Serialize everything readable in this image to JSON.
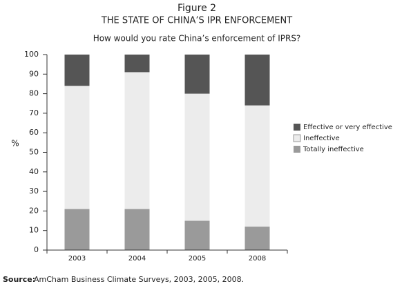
{
  "chart_data": {
    "type": "stacked_bar",
    "figure_label": "Figure 2",
    "title": "THE STATE OF CHINA’S IPR ENFORCEMENT",
    "subtitle": "How would you rate China’s enforcement of IPRS?",
    "y_label": "%",
    "categories": [
      "2003",
      "2004",
      "2005",
      "2008"
    ],
    "series": [
      {
        "name": "Totally ineffective",
        "color": "#9a9a9a",
        "values": [
          21,
          21,
          15,
          12
        ]
      },
      {
        "name": "Ineffective",
        "color": "#ececec",
        "values": [
          63,
          70,
          65,
          62
        ]
      },
      {
        "name": "Effective or very effective",
        "color": "#555555",
        "values": [
          16,
          9,
          20,
          26
        ]
      }
    ],
    "ylim": [
      0,
      100
    ],
    "yticks": [
      0,
      10,
      20,
      30,
      40,
      50,
      60,
      70,
      80,
      90,
      100
    ],
    "legend": "right",
    "source_label": "Source:",
    "source_text": "AmCham Business Climate Surveys, 2003, 2005, 2008."
  }
}
